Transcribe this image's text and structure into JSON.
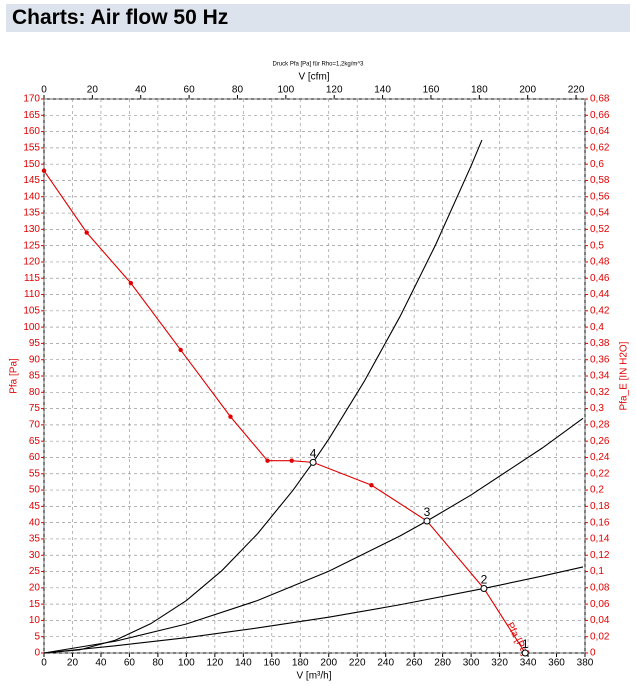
{
  "header": {
    "title": "Charts: Air flow 50 Hz"
  },
  "chart_data": {
    "type": "line",
    "title": "Druck Pfa [Pa] für Rho=1,2kg/m^3",
    "x_label": "V [m³/h]",
    "x2_label": "V [cfm]",
    "y_label": "Pfa [Pa]",
    "y2_label": "Pfa_E [IN H2O]",
    "xlim": [
      0,
      380
    ],
    "xticks": [
      0,
      20,
      40,
      60,
      80,
      100,
      120,
      140,
      160,
      180,
      200,
      220,
      240,
      260,
      280,
      300,
      320,
      340,
      360,
      380
    ],
    "x2lim": [
      0,
      223.7
    ],
    "x2ticks": [
      0,
      20,
      40,
      60,
      80,
      100,
      120,
      140,
      160,
      180,
      200,
      220
    ],
    "ylim": [
      0,
      170
    ],
    "yticks": [
      0,
      5,
      10,
      15,
      20,
      25,
      30,
      35,
      40,
      45,
      50,
      55,
      60,
      65,
      70,
      75,
      80,
      85,
      90,
      95,
      100,
      105,
      110,
      115,
      120,
      125,
      130,
      135,
      140,
      145,
      150,
      155,
      160,
      165,
      170
    ],
    "y2lim": [
      0,
      0.68
    ],
    "y2ticks": [
      0,
      {
        "value": 0.02,
        "label": "0,02"
      },
      {
        "value": 0.04,
        "label": "0,04"
      },
      {
        "value": 0.06,
        "label": "0,06"
      },
      {
        "value": 0.08,
        "label": "0,08"
      },
      {
        "value": 0.1,
        "label": "0,1"
      },
      {
        "value": 0.12,
        "label": "0,12"
      },
      {
        "value": 0.14,
        "label": "0,14"
      },
      {
        "value": 0.16,
        "label": "0,16"
      },
      {
        "value": 0.18,
        "label": "0,18"
      },
      {
        "value": 0.2,
        "label": "0,2"
      },
      {
        "value": 0.22,
        "label": "0,22"
      },
      {
        "value": 0.24,
        "label": "0,24"
      },
      {
        "value": 0.26,
        "label": "0,26"
      },
      {
        "value": 0.28,
        "label": "0,28"
      },
      {
        "value": 0.3,
        "label": "0,3"
      },
      {
        "value": 0.32,
        "label": "0,32"
      },
      {
        "value": 0.34,
        "label": "0,34"
      },
      {
        "value": 0.36,
        "label": "0,36"
      },
      {
        "value": 0.38,
        "label": "0,38"
      },
      {
        "value": 0.4,
        "label": "0,4"
      },
      {
        "value": 0.42,
        "label": "0,42"
      },
      {
        "value": 0.44,
        "label": "0,44"
      },
      {
        "value": 0.46,
        "label": "0,46"
      },
      {
        "value": 0.48,
        "label": "0,48"
      },
      {
        "value": 0.5,
        "label": "0,5"
      },
      {
        "value": 0.52,
        "label": "0,52"
      },
      {
        "value": 0.54,
        "label": "0,54"
      },
      {
        "value": 0.56,
        "label": "0,56"
      },
      {
        "value": 0.58,
        "label": "0,58"
      },
      {
        "value": 0.6,
        "label": "0,6"
      },
      {
        "value": 0.62,
        "label": "0,62"
      },
      {
        "value": 0.64,
        "label": "0,64"
      },
      {
        "value": 0.66,
        "label": "0,66"
      },
      {
        "value": 0.68,
        "label": "0,68"
      }
    ],
    "grid": true,
    "series": [
      {
        "name": "Pfa [Pa]",
        "color": "#e00000",
        "markers": true,
        "x": [
          0,
          30,
          61,
          96,
          131,
          157,
          174,
          189,
          230,
          269,
          309,
          338
        ],
        "values": [
          148,
          129,
          113.5,
          93,
          72.5,
          59,
          59,
          58.5,
          51.5,
          40.5,
          19.8,
          0
        ]
      },
      {
        "color": "#000000",
        "x": [
          0,
          25,
          50,
          75,
          100,
          125,
          150,
          175,
          189,
          200,
          225,
          250,
          275,
          300,
          307.6
        ],
        "values": [
          0,
          0.96,
          3.9,
          9.0,
          16.1,
          25.3,
          36.6,
          50.0,
          58.5,
          65.6,
          83.4,
          103.2,
          125.2,
          149.5,
          157.4
        ]
      },
      {
        "color": "#000000",
        "x": [
          0,
          50,
          100,
          150,
          200,
          250,
          269,
          300,
          350,
          378.6
        ],
        "values": [
          0,
          3.6,
          8.9,
          16.1,
          25.1,
          35.9,
          40.5,
          48.5,
          62.9,
          72.0
        ]
      },
      {
        "color": "#000000",
        "x": [
          0,
          50,
          100,
          150,
          200,
          250,
          309,
          350,
          378.6
        ],
        "values": [
          0,
          2.2,
          4.7,
          7.7,
          11.0,
          14.8,
          19.8,
          23.6,
          26.4
        ]
      }
    ],
    "operating_points": [
      {
        "label": "1",
        "x": 338,
        "y": 0
      },
      {
        "label": "2",
        "x": 309,
        "y": 19.8
      },
      {
        "label": "3",
        "x": 269,
        "y": 40.5
      },
      {
        "label": "4",
        "x": 189,
        "y": 58.5
      }
    ]
  }
}
